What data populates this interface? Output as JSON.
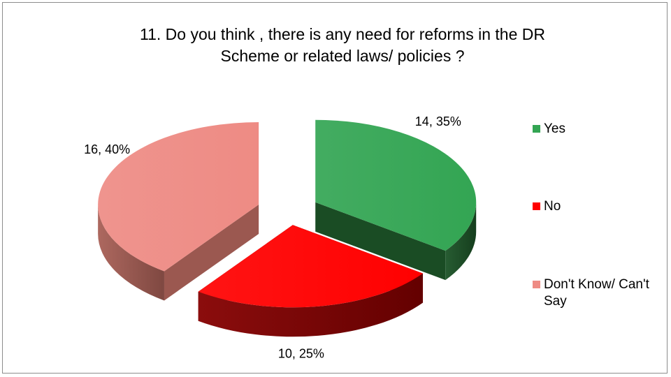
{
  "chart_data": {
    "type": "pie",
    "style": "3d-exploded",
    "title": "11. Do you think , there is any need for reforms in the DR\nScheme or related laws/ policies ?",
    "categories": [
      "Yes",
      "No",
      "Don't Know/ Can't Say"
    ],
    "values": [
      14,
      10,
      16
    ],
    "percentages": [
      35,
      25,
      40
    ],
    "data_labels": [
      "14, 35%",
      "10, 25%",
      "16, 40%"
    ],
    "legend_position": "right",
    "colors": [
      "#33a553",
      "#ff0000",
      "#ee8b84"
    ],
    "side_colors": [
      "#1c5327",
      "#850000",
      "#a96057"
    ]
  }
}
